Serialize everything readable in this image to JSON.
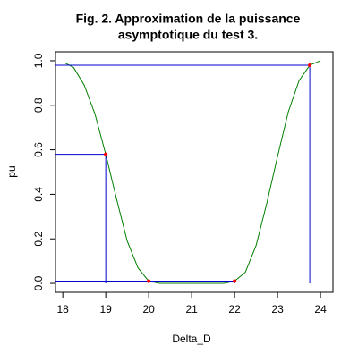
{
  "chart_data": {
    "type": "line",
    "title": [
      "Fig. 2. Approximation de la puissance",
      "asymptotique du test 3."
    ],
    "xlabel": "Delta_D",
    "ylabel": "pu",
    "xlim": [
      17.83,
      24.29
    ],
    "ylim": [
      -0.04,
      1.04
    ],
    "xticks": [
      18,
      19,
      20,
      21,
      22,
      23,
      24
    ],
    "yticks": [
      {
        "value": 0,
        "label": "0.0"
      },
      {
        "value": 0.2,
        "label": "0.2"
      },
      {
        "value": 0.4,
        "label": "0.4"
      },
      {
        "value": 0.6,
        "label": "0.6"
      },
      {
        "value": 0.8,
        "label": "0.8"
      },
      {
        "value": 1,
        "label": "1.0"
      }
    ],
    "series": [
      {
        "color": "#007f00",
        "x": [
          18.05,
          18.25,
          18.5,
          18.75,
          19,
          19.25,
          19.5,
          19.75,
          20,
          20.25,
          20.5,
          21,
          21.5,
          21.75,
          22,
          22.25,
          22.5,
          22.75,
          23,
          23.25,
          23.5,
          23.75,
          24
        ],
        "values": [
          0.99,
          0.97,
          0.89,
          0.76,
          0.58,
          0.38,
          0.19,
          0.07,
          0.01,
          0.0,
          0.0,
          0.0,
          0.0,
          0.0,
          0.01,
          0.05,
          0.17,
          0.36,
          0.57,
          0.77,
          0.91,
          0.98,
          1.0
        ]
      }
    ],
    "points": {
      "color": "#ff0000",
      "line_color": "#0000cc",
      "x": [
        19,
        20,
        22,
        23.75
      ],
      "values": [
        0.58,
        0.01,
        0.01,
        0.98
      ]
    }
  }
}
